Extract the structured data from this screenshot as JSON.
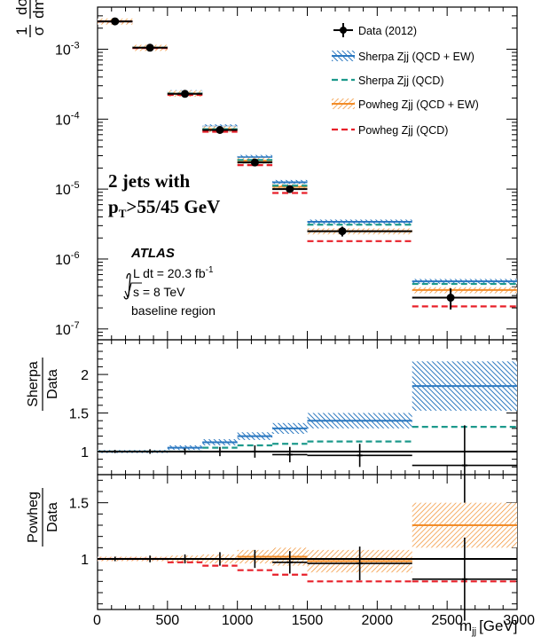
{
  "chart_data": {
    "type": "scatter",
    "x_bins": [
      0,
      250,
      500,
      750,
      1000,
      1250,
      1500,
      2250,
      3000
    ],
    "x_axis": {
      "label_main": "m",
      "label_sub": "jj",
      "unit": "[GeV]",
      "ticks": [
        0,
        500,
        1000,
        1500,
        2000,
        2500,
        3000
      ],
      "tick_labels": [
        "0",
        "500",
        "1000",
        "1500",
        "2000",
        "2500",
        "3000"
      ],
      "range": [
        0,
        3000
      ]
    },
    "main_panel": {
      "y_label": "1/σ dσ/dm_jj",
      "y_scale": "log",
      "y_range": [
        7e-08,
        0.004
      ],
      "y_tick_labels": [
        {
          "value": 0.001,
          "base": "10",
          "exp": "-3"
        },
        {
          "value": 0.0001,
          "base": "10",
          "exp": "-4"
        },
        {
          "value": 1e-05,
          "base": "10",
          "exp": "-5"
        },
        {
          "value": 1e-06,
          "base": "10",
          "exp": "-6"
        },
        {
          "value": 1e-07,
          "base": "10",
          "exp": "-7"
        }
      ],
      "data": {
        "x": [
          125,
          375,
          625,
          875,
          1125,
          1375,
          1750,
          2525
        ],
        "y": [
          0.0025,
          0.00105,
          0.00023,
          7e-05,
          2.4e-05,
          1e-05,
          2.5e-06,
          2.8e-07
        ],
        "err_low": [
          0.0001,
          4e-05,
          8e-06,
          2.5e-06,
          1.2e-06,
          8e-07,
          4e-07,
          9e-08
        ],
        "err_high": [
          0.0001,
          4e-05,
          8e-06,
          2.5e-06,
          1.2e-06,
          8e-07,
          4e-07,
          1e-07
        ]
      },
      "sherpa_ew": {
        "values": [
          0.0025,
          0.00106,
          0.00024,
          7.8e-05,
          2.85e-05,
          1.25e-05,
          3.4e-06,
          4.8e-07
        ],
        "band_fraction": 0.08
      },
      "sherpa_qcd": [
        0.0025,
        0.00105,
        0.000232,
        7.2e-05,
        2.6e-05,
        1.12e-05,
        3.1e-06,
        4.4e-07
      ],
      "powheg_ew": {
        "values": [
          0.0025,
          0.00105,
          0.000232,
          7.2e-05,
          2.55e-05,
          1.08e-05,
          2.5e-06,
          3.6e-07
        ],
        "band_fraction": 0.1
      },
      "powheg_qcd": [
        0.0025,
        0.00104,
        0.000222,
        6.6e-05,
        2.2e-05,
        8.8e-06,
        1.8e-06,
        2.1e-07
      ]
    },
    "sherpa_ratio_panel": {
      "y_label_num": "Sherpa",
      "y_label_den": "Data",
      "y_range": [
        0.7,
        2.45
      ],
      "y_ticks": [
        1,
        1.5,
        2
      ],
      "y_tick_labels": [
        "1",
        "1.5",
        "2"
      ],
      "ew": [
        1.0,
        1.0,
        1.05,
        1.12,
        1.2,
        1.3,
        1.4,
        1.85
      ],
      "ew_err": [
        0.02,
        0.02,
        0.03,
        0.04,
        0.05,
        0.07,
        0.1,
        0.32
      ],
      "qcd": [
        1.0,
        1.0,
        1.0,
        1.05,
        1.08,
        1.1,
        1.13,
        1.32
      ],
      "data_x": [
        125,
        375,
        625,
        875,
        1125,
        1375,
        1875,
        2625
      ],
      "data_y": [
        1.0,
        1.0,
        1.0,
        1.0,
        1.0,
        0.96,
        0.95,
        0.82
      ],
      "data_err": [
        0.02,
        0.03,
        0.04,
        0.06,
        0.08,
        0.1,
        0.15,
        0.52
      ],
      "data_bin_lo": [
        0,
        250,
        500,
        750,
        1000,
        1250,
        1500,
        2250
      ],
      "data_bin_hi": [
        250,
        500,
        750,
        1000,
        1250,
        1500,
        2250,
        3000
      ]
    },
    "powheg_ratio_panel": {
      "y_label_num": "Powheg",
      "y_label_den": "Data",
      "y_range": [
        0.55,
        1.75
      ],
      "y_ticks": [
        1,
        1.5
      ],
      "y_tick_labels": [
        "1",
        "1.5"
      ],
      "ew": [
        1.0,
        1.0,
        1.0,
        1.0,
        1.02,
        1.02,
        0.98,
        1.3
      ],
      "ew_err": [
        0.02,
        0.02,
        0.03,
        0.04,
        0.06,
        0.08,
        0.1,
        0.2
      ],
      "qcd": [
        1.0,
        1.0,
        0.97,
        0.94,
        0.9,
        0.86,
        0.8,
        0.8
      ],
      "data_x": [
        125,
        375,
        625,
        875,
        1125,
        1375,
        1875,
        2625
      ],
      "data_y": [
        1.0,
        1.0,
        1.0,
        1.0,
        1.0,
        0.97,
        0.96,
        0.82
      ],
      "data_err": [
        0.02,
        0.03,
        0.04,
        0.06,
        0.08,
        0.1,
        0.15,
        0.37
      ],
      "data_bin_lo": [
        0,
        250,
        500,
        750,
        1000,
        1250,
        1500,
        2250
      ],
      "data_bin_hi": [
        250,
        500,
        750,
        1000,
        1250,
        1500,
        2250,
        3000
      ]
    },
    "legend": {
      "placement": "top-right",
      "entries": [
        {
          "label": "Data (2012)",
          "style": "data"
        },
        {
          "label": "Sherpa Zjj (QCD + EW)",
          "style": "sherpa-band"
        },
        {
          "label": "Sherpa Zjj (QCD)",
          "style": "sherpa-dash"
        },
        {
          "label": "Powheg Zjj (QCD + EW)",
          "style": "powheg-band"
        },
        {
          "label": "Powheg Zjj (QCD)",
          "style": "powheg-dash"
        }
      ]
    },
    "annotations": {
      "jets_line1": "2 jets with",
      "jets_pt": "p",
      "jets_pt_sub": "T",
      "jets_line2_rest": ">55/45 GeV",
      "atlas": "ATLAS",
      "lumi_prefix": "L dt = 20.3 fb",
      "lumi_exp": "-1",
      "energy": "s = 8 TeV",
      "region": "baseline region"
    },
    "colors": {
      "data": "#000000",
      "sherpa": "#2b78c0",
      "sherpa_qcd": "#1d9a8c",
      "powheg": "#f28c28",
      "powheg_qcd": "#e8202a"
    }
  }
}
